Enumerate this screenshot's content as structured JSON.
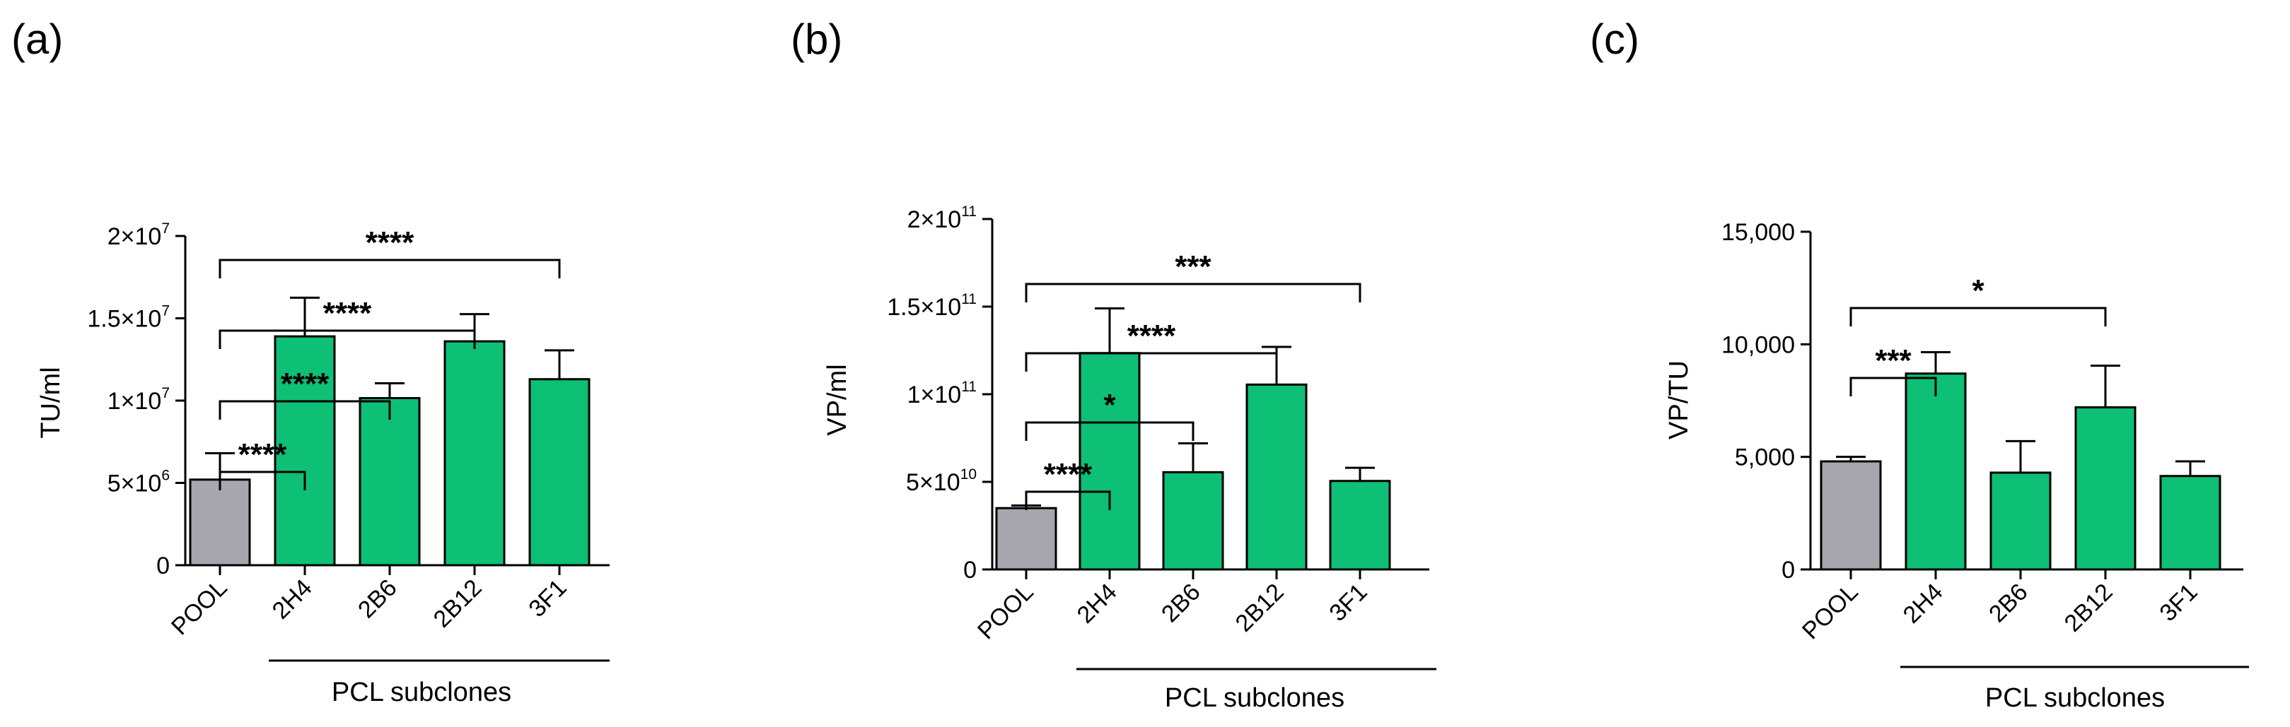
{
  "figure": {
    "group_label": "PCL subclones",
    "colors": {
      "control": "#a7a5ad",
      "subclone": "#0ebf76",
      "line": "#000000"
    }
  },
  "chart_data": [
    {
      "panel": "(a)",
      "type": "bar",
      "ylabel": "TU/ml",
      "categories": [
        "POOL",
        "2H4",
        "2B6",
        "2B12",
        "3F1"
      ],
      "values": [
        5200000,
        13900000,
        10150000,
        13600000,
        11300000
      ],
      "errors": [
        1600000,
        2350000,
        900000,
        1650000,
        1750000
      ],
      "ylim": [
        0,
        20000000
      ],
      "yticks": [
        {
          "value": 0,
          "label": "0"
        },
        {
          "value": 5000000,
          "label": "5×10",
          "exp": "6"
        },
        {
          "value": 10000000,
          "label": "1×10",
          "exp": "7"
        },
        {
          "value": 15000000,
          "label": "1.5×10",
          "exp": "7"
        },
        {
          "value": 20000000,
          "label": "2×10",
          "exp": "7"
        }
      ],
      "comparisons": [
        {
          "from": 0,
          "to": 1,
          "label": "****"
        },
        {
          "from": 0,
          "to": 2,
          "label": "****"
        },
        {
          "from": 0,
          "to": 3,
          "label": "****"
        },
        {
          "from": 0,
          "to": 4,
          "label": "****"
        }
      ]
    },
    {
      "panel": "(b)",
      "type": "bar",
      "ylabel": "VP/ml",
      "categories": [
        "POOL",
        "2H4",
        "2B6",
        "2B12",
        "3F1"
      ],
      "values": [
        35000000000,
        123500000000,
        55500000000,
        105500000000,
        50500000000
      ],
      "errors": [
        1500000000,
        25500000000,
        16500000000,
        21500000000,
        7500000000
      ],
      "ylim": [
        0,
        200000000000
      ],
      "yticks": [
        {
          "value": 0,
          "label": "0"
        },
        {
          "value": 50000000000,
          "label": "5×10",
          "exp": "10"
        },
        {
          "value": 100000000000,
          "label": "1×10",
          "exp": "11"
        },
        {
          "value": 150000000000,
          "label": "1.5×10",
          "exp": "11"
        },
        {
          "value": 200000000000,
          "label": "2×10",
          "exp": "11"
        }
      ],
      "comparisons": [
        {
          "from": 0,
          "to": 1,
          "label": "****"
        },
        {
          "from": 0,
          "to": 2,
          "label": "*"
        },
        {
          "from": 0,
          "to": 3,
          "label": "****"
        },
        {
          "from": 0,
          "to": 4,
          "label": "***"
        }
      ]
    },
    {
      "panel": "(c)",
      "type": "bar",
      "ylabel": "VP/TU",
      "categories": [
        "POOL",
        "2H4",
        "2B6",
        "2B12",
        "3F1"
      ],
      "values": [
        4800,
        8700,
        4300,
        7200,
        4150
      ],
      "errors": [
        200,
        950,
        1400,
        1850,
        650
      ],
      "ylim": [
        0,
        15000
      ],
      "yticks": [
        {
          "value": 0,
          "label": "0"
        },
        {
          "value": 5000,
          "label": "5,000"
        },
        {
          "value": 10000,
          "label": "10,000"
        },
        {
          "value": 15000,
          "label": "15,000"
        }
      ],
      "comparisons": [
        {
          "from": 0,
          "to": 1,
          "label": "***"
        },
        {
          "from": 0,
          "to": 3,
          "label": "*"
        }
      ]
    }
  ]
}
